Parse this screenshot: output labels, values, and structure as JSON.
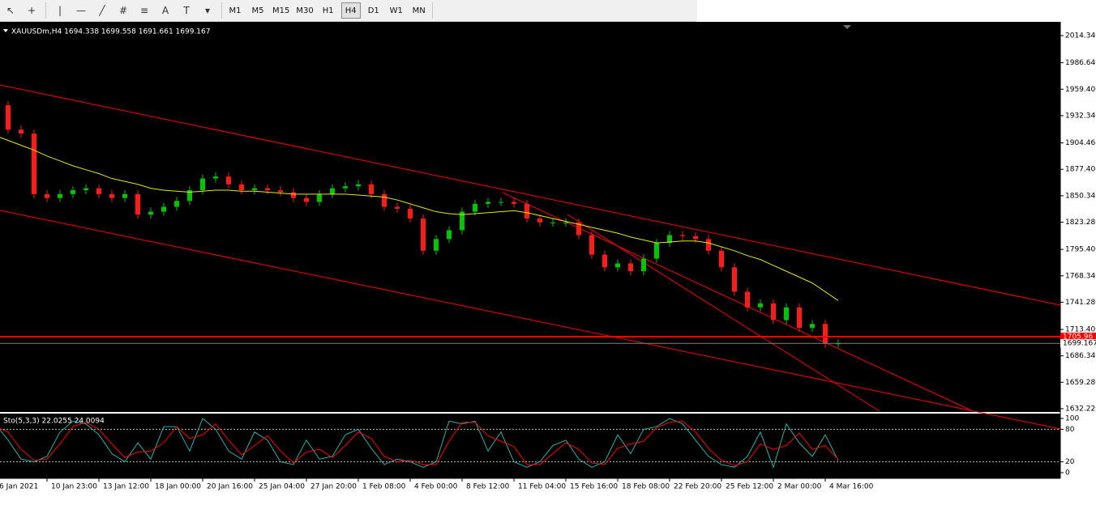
{
  "toolbar": {
    "timeframes": [
      "M1",
      "M5",
      "M15",
      "M30",
      "H1",
      "H4",
      "D1",
      "W1",
      "MN"
    ],
    "active_index": 5
  },
  "chart_data": [
    {
      "type": "candlestick",
      "title": "XAUUSDm,H4  1694.338 1699.558 1691.661 1699.167",
      "categories": [
        "6 Jan 2021",
        null,
        null,
        null,
        "10 Jan 23:00",
        null,
        null,
        null,
        "13 Jan 12:00",
        null,
        null,
        null,
        "18 Jan 00:00",
        null,
        null,
        null,
        "20 Jan 16:00",
        null,
        null,
        null,
        "25 Jan 04:00",
        null,
        null,
        null,
        "27 Jan 20:00",
        null,
        null,
        null,
        "1 Feb 08:00",
        null,
        null,
        null,
        "4 Feb 00:00",
        null,
        null,
        null,
        "8 Feb 12:00",
        null,
        null,
        null,
        "11 Feb 04:00",
        null,
        null,
        null,
        "15 Feb 16:00",
        null,
        null,
        null,
        "18 Feb 08:00",
        null,
        null,
        null,
        "22 Feb 20:00",
        null,
        null,
        null,
        "25 Feb 12:00",
        null,
        null,
        null,
        "2 Mar 00:00",
        null,
        null,
        null,
        "4 Mar 16:00",
        null
      ],
      "values": [
        1943,
        1918,
        1914,
        1852,
        1848,
        1852,
        1856,
        1858,
        1852,
        1848,
        1852,
        1831,
        1834,
        1839,
        1845,
        1856,
        1868,
        1870,
        1862,
        1856,
        1858,
        1856,
        1854,
        1848,
        1844,
        1852,
        1858,
        1860,
        1862,
        1852,
        1839,
        1837,
        1827,
        1794,
        1806,
        1815,
        1834,
        1842,
        1844,
        1844,
        1842,
        1827,
        1823,
        1823,
        1823,
        1810,
        1790,
        1777,
        1781,
        1773,
        1786,
        1802,
        1810,
        1809,
        1806,
        1794,
        1777,
        1752,
        1736,
        1740,
        1723,
        1736,
        1715,
        1719,
        1699,
        1699.167
      ],
      "up_color": "#00c800",
      "down_color": "#ff1a1a",
      "ma": {
        "color": "#e8e800",
        "values": [
          1912,
          1907,
          1902,
          1897,
          1891,
          1886,
          1881,
          1877,
          1873,
          1868,
          1865,
          1862,
          1858,
          1856,
          1855,
          1854,
          1855,
          1856,
          1856,
          1855,
          1855,
          1854,
          1853,
          1852,
          1852,
          1852,
          1852,
          1852,
          1851,
          1850,
          1849,
          1846,
          1842,
          1838,
          1834,
          1832,
          1831,
          1832,
          1833,
          1834,
          1835,
          1833,
          1830,
          1827,
          1824,
          1821,
          1818,
          1815,
          1812,
          1808,
          1805,
          1802,
          1803,
          1804,
          1804,
          1802,
          1798,
          1794,
          1789,
          1785,
          1779,
          1773,
          1767,
          1761,
          1752,
          1743
        ]
      },
      "ylim": [
        1629.7,
        2027.6
      ],
      "yticks": [
        {
          "value": 2014.34,
          "label": "2014.340"
        },
        {
          "value": 1986.64,
          "label": "1986.640"
        },
        {
          "value": 1959.4,
          "label": "1959.400"
        },
        {
          "value": 1932.34,
          "label": "1932.340"
        },
        {
          "value": 1904.46,
          "label": "1904.460"
        },
        {
          "value": 1877.4,
          "label": "1877.400"
        },
        {
          "value": 1850.34,
          "label": "1850.340"
        },
        {
          "value": 1823.28,
          "label": "1823.280"
        },
        {
          "value": 1795.4,
          "label": "1795.400"
        },
        {
          "value": 1768.34,
          "label": "1768.340"
        },
        {
          "value": 1741.28,
          "label": "1741.280"
        },
        {
          "value": 1713.4,
          "label": "1713.400"
        },
        {
          "value": 1686.34,
          "label": "1686.340"
        },
        {
          "value": 1659.28,
          "label": "1659.280"
        },
        {
          "value": 1632.22,
          "label": "1632.220"
        }
      ],
      "price_lines": [
        {
          "value": 1705.96,
          "color": "#ff0000"
        },
        {
          "value": 1699.167,
          "color": "#808080"
        }
      ]
    },
    {
      "type": "line",
      "title": "Sto(5,3,3) 22.0255 24.0094",
      "series": [
        {
          "color": "#20b2aa",
          "values": [
            90,
            60,
            25,
            20,
            30,
            75,
            95,
            90,
            70,
            35,
            20,
            55,
            25,
            85,
            85,
            40,
            100,
            80,
            40,
            25,
            75,
            60,
            20,
            15,
            60,
            25,
            30,
            70,
            80,
            45,
            15,
            25,
            20,
            10,
            20,
            95,
            90,
            95,
            40,
            75,
            20,
            10,
            20,
            50,
            60,
            25,
            10,
            20,
            70,
            35,
            80,
            85,
            100,
            90,
            60,
            30,
            15,
            10,
            30,
            75,
            10,
            90,
            55,
            30,
            70,
            22.0255
          ]
        },
        {
          "color": "#ff0000",
          "values": [
            85,
            75,
            43,
            23,
            25,
            53,
            85,
            93,
            80,
            53,
            28,
            38,
            40,
            55,
            85,
            63,
            70,
            90,
            60,
            33,
            50,
            68,
            40,
            18,
            38,
            43,
            28,
            50,
            75,
            63,
            30,
            20,
            23,
            15,
            15,
            58,
            93,
            93,
            68,
            58,
            48,
            15,
            15,
            35,
            55,
            43,
            18,
            15,
            45,
            53,
            58,
            83,
            93,
            95,
            75,
            45,
            23,
            13,
            20,
            53,
            43,
            50,
            73,
            43,
            50,
            24.0094
          ]
        }
      ],
      "ylim": [
        -6,
        109
      ],
      "yticks": [
        100,
        80,
        20,
        0
      ],
      "levels": [
        80,
        20
      ]
    }
  ]
}
